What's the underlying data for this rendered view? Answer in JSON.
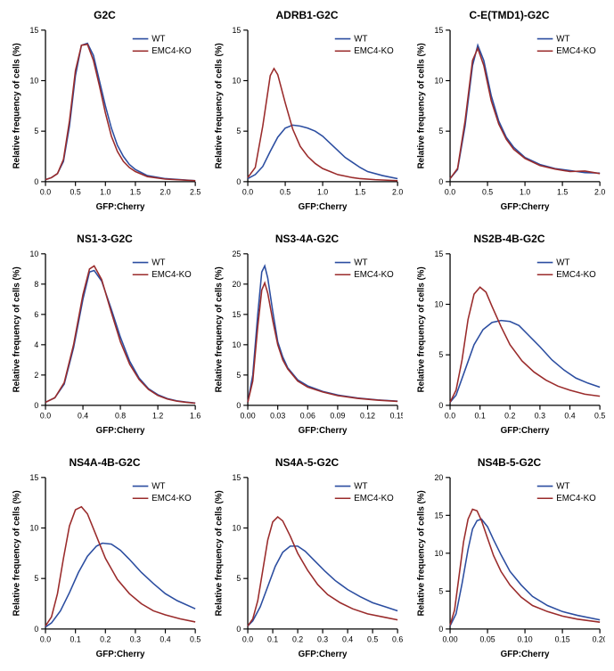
{
  "global": {
    "xlabel": "GFP:Cherry",
    "ylabel": "Relative frequency of cells (%)",
    "series_names": [
      "WT",
      "EMC4-KO"
    ],
    "colors": {
      "wt": "#2b4da0",
      "ko": "#9a2b2b"
    },
    "axis_color": "#000000",
    "background": "#ffffff",
    "line_width": 1.6,
    "title_fontsize": 12,
    "label_fontsize": 10,
    "tick_fontsize": 9,
    "legend_fontsize": 10
  },
  "panels": [
    {
      "title": "G2C",
      "xlim": [
        0.0,
        2.5
      ],
      "xtick_step": 0.5,
      "ylim": [
        0,
        15
      ],
      "ytick_step": 5,
      "legend_pos": "top-right",
      "wt": [
        [
          0,
          0.2
        ],
        [
          0.1,
          0.4
        ],
        [
          0.2,
          0.8
        ],
        [
          0.3,
          2.0
        ],
        [
          0.4,
          5.5
        ],
        [
          0.5,
          10.5
        ],
        [
          0.6,
          13.5
        ],
        [
          0.7,
          13.7
        ],
        [
          0.8,
          12.5
        ],
        [
          0.9,
          10.0
        ],
        [
          1.0,
          7.5
        ],
        [
          1.1,
          5.3
        ],
        [
          1.2,
          3.6
        ],
        [
          1.3,
          2.5
        ],
        [
          1.4,
          1.7
        ],
        [
          1.5,
          1.2
        ],
        [
          1.7,
          0.6
        ],
        [
          2.0,
          0.3
        ],
        [
          2.5,
          0.1
        ]
      ],
      "ko": [
        [
          0,
          0.2
        ],
        [
          0.1,
          0.4
        ],
        [
          0.2,
          0.8
        ],
        [
          0.3,
          2.2
        ],
        [
          0.4,
          6.0
        ],
        [
          0.5,
          11.0
        ],
        [
          0.6,
          13.5
        ],
        [
          0.7,
          13.6
        ],
        [
          0.8,
          12.0
        ],
        [
          0.9,
          9.5
        ],
        [
          1.0,
          6.8
        ],
        [
          1.1,
          4.5
        ],
        [
          1.2,
          3.0
        ],
        [
          1.3,
          2.0
        ],
        [
          1.4,
          1.4
        ],
        [
          1.5,
          1.0
        ],
        [
          1.7,
          0.5
        ],
        [
          2.0,
          0.25
        ],
        [
          2.5,
          0.1
        ]
      ]
    },
    {
      "title": "ADRB1-G2C",
      "xlim": [
        0.0,
        2.0
      ],
      "xtick_step": 0.5,
      "ylim": [
        0,
        15
      ],
      "ytick_step": 5,
      "legend_pos": "top-right",
      "wt": [
        [
          0,
          0.3
        ],
        [
          0.1,
          0.7
        ],
        [
          0.2,
          1.5
        ],
        [
          0.3,
          3.0
        ],
        [
          0.4,
          4.4
        ],
        [
          0.5,
          5.3
        ],
        [
          0.6,
          5.6
        ],
        [
          0.7,
          5.5
        ],
        [
          0.8,
          5.3
        ],
        [
          0.9,
          5.0
        ],
        [
          1.0,
          4.5
        ],
        [
          1.1,
          3.8
        ],
        [
          1.2,
          3.1
        ],
        [
          1.3,
          2.4
        ],
        [
          1.4,
          1.9
        ],
        [
          1.5,
          1.4
        ],
        [
          1.6,
          1.0
        ],
        [
          1.8,
          0.6
        ],
        [
          2.0,
          0.3
        ]
      ],
      "ko": [
        [
          0,
          0.4
        ],
        [
          0.1,
          1.4
        ],
        [
          0.2,
          5.5
        ],
        [
          0.3,
          10.5
        ],
        [
          0.35,
          11.2
        ],
        [
          0.4,
          10.6
        ],
        [
          0.5,
          7.8
        ],
        [
          0.6,
          5.2
        ],
        [
          0.7,
          3.5
        ],
        [
          0.8,
          2.5
        ],
        [
          0.9,
          1.8
        ],
        [
          1.0,
          1.3
        ],
        [
          1.1,
          1.0
        ],
        [
          1.2,
          0.7
        ],
        [
          1.3,
          0.55
        ],
        [
          1.4,
          0.4
        ],
        [
          1.5,
          0.3
        ],
        [
          1.7,
          0.2
        ],
        [
          2.0,
          0.1
        ]
      ]
    },
    {
      "title": "C-E(TMD1)-G2C",
      "xlim": [
        0.0,
        2.0
      ],
      "xtick_step": 0.5,
      "ylim": [
        0,
        15
      ],
      "ytick_step": 5,
      "legend_pos": "top-right",
      "wt": [
        [
          0,
          0.3
        ],
        [
          0.1,
          1.2
        ],
        [
          0.2,
          5.5
        ],
        [
          0.3,
          11.5
        ],
        [
          0.37,
          13.5
        ],
        [
          0.45,
          12.0
        ],
        [
          0.55,
          8.5
        ],
        [
          0.65,
          6.0
        ],
        [
          0.75,
          4.4
        ],
        [
          0.85,
          3.4
        ],
        [
          1.0,
          2.4
        ],
        [
          1.2,
          1.7
        ],
        [
          1.4,
          1.3
        ],
        [
          1.6,
          1.1
        ],
        [
          1.8,
          0.9
        ],
        [
          2.0,
          0.85
        ]
      ],
      "ko": [
        [
          0,
          0.3
        ],
        [
          0.1,
          1.3
        ],
        [
          0.2,
          6.0
        ],
        [
          0.3,
          12.0
        ],
        [
          0.37,
          13.2
        ],
        [
          0.45,
          11.5
        ],
        [
          0.55,
          8.0
        ],
        [
          0.65,
          5.7
        ],
        [
          0.75,
          4.2
        ],
        [
          0.85,
          3.2
        ],
        [
          1.0,
          2.3
        ],
        [
          1.2,
          1.6
        ],
        [
          1.4,
          1.25
        ],
        [
          1.6,
          1.0
        ],
        [
          1.8,
          1.05
        ],
        [
          2.0,
          0.8
        ]
      ]
    },
    {
      "title": "NS1-3-G2C",
      "xlim": [
        0.0,
        1.6
      ],
      "xtick_step": 0.4,
      "ylim": [
        0,
        10
      ],
      "ytick_step": 2,
      "legend_pos": "top-right",
      "wt": [
        [
          0,
          0.2
        ],
        [
          0.1,
          0.5
        ],
        [
          0.2,
          1.4
        ],
        [
          0.3,
          3.8
        ],
        [
          0.4,
          7.0
        ],
        [
          0.47,
          8.8
        ],
        [
          0.52,
          8.9
        ],
        [
          0.6,
          8.2
        ],
        [
          0.7,
          6.4
        ],
        [
          0.8,
          4.5
        ],
        [
          0.9,
          2.9
        ],
        [
          1.0,
          1.8
        ],
        [
          1.1,
          1.1
        ],
        [
          1.2,
          0.7
        ],
        [
          1.3,
          0.45
        ],
        [
          1.4,
          0.3
        ],
        [
          1.5,
          0.22
        ],
        [
          1.6,
          0.15
        ]
      ],
      "ko": [
        [
          0,
          0.2
        ],
        [
          0.1,
          0.5
        ],
        [
          0.2,
          1.5
        ],
        [
          0.3,
          4.0
        ],
        [
          0.4,
          7.3
        ],
        [
          0.47,
          9.0
        ],
        [
          0.52,
          9.2
        ],
        [
          0.6,
          8.3
        ],
        [
          0.7,
          6.2
        ],
        [
          0.8,
          4.2
        ],
        [
          0.9,
          2.7
        ],
        [
          1.0,
          1.7
        ],
        [
          1.1,
          1.05
        ],
        [
          1.2,
          0.65
        ],
        [
          1.3,
          0.42
        ],
        [
          1.4,
          0.28
        ],
        [
          1.5,
          0.2
        ],
        [
          1.6,
          0.14
        ]
      ]
    },
    {
      "title": "NS3-4A-G2C",
      "xlim": [
        0.0,
        0.15
      ],
      "xtick_step": 0.03,
      "ylim": [
        0,
        25
      ],
      "ytick_step": 5,
      "legend_pos": "top-right",
      "wt": [
        [
          0,
          0.5
        ],
        [
          0.005,
          5
        ],
        [
          0.01,
          15
        ],
        [
          0.014,
          22
        ],
        [
          0.017,
          23
        ],
        [
          0.02,
          21
        ],
        [
          0.025,
          15.5
        ],
        [
          0.03,
          10.5
        ],
        [
          0.035,
          8.0
        ],
        [
          0.04,
          6.2
        ],
        [
          0.05,
          4.2
        ],
        [
          0.06,
          3.2
        ],
        [
          0.075,
          2.3
        ],
        [
          0.09,
          1.7
        ],
        [
          0.11,
          1.2
        ],
        [
          0.13,
          0.9
        ],
        [
          0.15,
          0.7
        ]
      ],
      "ko": [
        [
          0,
          0.5
        ],
        [
          0.005,
          4
        ],
        [
          0.01,
          13
        ],
        [
          0.014,
          19
        ],
        [
          0.017,
          20.2
        ],
        [
          0.02,
          18.5
        ],
        [
          0.025,
          14
        ],
        [
          0.03,
          10
        ],
        [
          0.035,
          7.5
        ],
        [
          0.04,
          6.0
        ],
        [
          0.05,
          4.0
        ],
        [
          0.06,
          3.0
        ],
        [
          0.075,
          2.2
        ],
        [
          0.09,
          1.6
        ],
        [
          0.11,
          1.15
        ],
        [
          0.13,
          0.85
        ],
        [
          0.15,
          0.65
        ]
      ]
    },
    {
      "title": "NS2B-4B-G2C",
      "xlim": [
        0.0,
        0.5
      ],
      "xtick_step": 0.1,
      "ylim": [
        0,
        15
      ],
      "ytick_step": 5,
      "legend_pos": "top-right",
      "wt": [
        [
          0,
          0.3
        ],
        [
          0.02,
          1.0
        ],
        [
          0.05,
          3.5
        ],
        [
          0.08,
          6.0
        ],
        [
          0.11,
          7.5
        ],
        [
          0.14,
          8.2
        ],
        [
          0.17,
          8.4
        ],
        [
          0.2,
          8.3
        ],
        [
          0.23,
          7.9
        ],
        [
          0.26,
          7.0
        ],
        [
          0.3,
          5.8
        ],
        [
          0.34,
          4.5
        ],
        [
          0.38,
          3.5
        ],
        [
          0.42,
          2.7
        ],
        [
          0.46,
          2.2
        ],
        [
          0.5,
          1.8
        ]
      ],
      "ko": [
        [
          0,
          0.3
        ],
        [
          0.02,
          1.5
        ],
        [
          0.04,
          4.5
        ],
        [
          0.06,
          8.5
        ],
        [
          0.08,
          11.0
        ],
        [
          0.1,
          11.7
        ],
        [
          0.12,
          11.2
        ],
        [
          0.14,
          9.8
        ],
        [
          0.17,
          7.8
        ],
        [
          0.2,
          6.0
        ],
        [
          0.24,
          4.4
        ],
        [
          0.28,
          3.3
        ],
        [
          0.32,
          2.5
        ],
        [
          0.36,
          1.9
        ],
        [
          0.4,
          1.5
        ],
        [
          0.45,
          1.1
        ],
        [
          0.5,
          0.9
        ]
      ]
    },
    {
      "title": "NS4A-4B-G2C",
      "xlim": [
        0.0,
        0.5
      ],
      "xtick_step": 0.1,
      "ylim": [
        0,
        15
      ],
      "ytick_step": 5,
      "legend_pos": "top-right",
      "wt": [
        [
          0,
          0.2
        ],
        [
          0.02,
          0.6
        ],
        [
          0.05,
          1.8
        ],
        [
          0.08,
          3.6
        ],
        [
          0.11,
          5.6
        ],
        [
          0.14,
          7.2
        ],
        [
          0.17,
          8.2
        ],
        [
          0.19,
          8.5
        ],
        [
          0.22,
          8.4
        ],
        [
          0.25,
          7.8
        ],
        [
          0.28,
          6.9
        ],
        [
          0.32,
          5.6
        ],
        [
          0.36,
          4.5
        ],
        [
          0.4,
          3.5
        ],
        [
          0.44,
          2.8
        ],
        [
          0.5,
          2.0
        ]
      ],
      "ko": [
        [
          0,
          0.3
        ],
        [
          0.02,
          1.2
        ],
        [
          0.04,
          3.5
        ],
        [
          0.06,
          7.0
        ],
        [
          0.08,
          10.2
        ],
        [
          0.1,
          11.8
        ],
        [
          0.12,
          12.1
        ],
        [
          0.14,
          11.4
        ],
        [
          0.17,
          9.2
        ],
        [
          0.2,
          7.0
        ],
        [
          0.24,
          4.9
        ],
        [
          0.28,
          3.5
        ],
        [
          0.32,
          2.5
        ],
        [
          0.36,
          1.8
        ],
        [
          0.4,
          1.4
        ],
        [
          0.45,
          1.0
        ],
        [
          0.5,
          0.7
        ]
      ]
    },
    {
      "title": "NS4A-5-G2C",
      "xlim": [
        0.0,
        0.6
      ],
      "xtick_step": 0.1,
      "ylim": [
        0,
        15
      ],
      "ytick_step": 5,
      "legend_pos": "top-right",
      "wt": [
        [
          0,
          0.3
        ],
        [
          0.02,
          0.8
        ],
        [
          0.05,
          2.2
        ],
        [
          0.08,
          4.2
        ],
        [
          0.11,
          6.2
        ],
        [
          0.14,
          7.6
        ],
        [
          0.17,
          8.2
        ],
        [
          0.2,
          8.2
        ],
        [
          0.23,
          7.7
        ],
        [
          0.27,
          6.7
        ],
        [
          0.31,
          5.7
        ],
        [
          0.35,
          4.8
        ],
        [
          0.4,
          3.9
        ],
        [
          0.45,
          3.2
        ],
        [
          0.5,
          2.6
        ],
        [
          0.55,
          2.2
        ],
        [
          0.6,
          1.8
        ]
      ],
      "ko": [
        [
          0,
          0.3
        ],
        [
          0.02,
          1.0
        ],
        [
          0.04,
          2.8
        ],
        [
          0.06,
          5.8
        ],
        [
          0.08,
          8.8
        ],
        [
          0.1,
          10.6
        ],
        [
          0.12,
          11.1
        ],
        [
          0.14,
          10.7
        ],
        [
          0.17,
          9.2
        ],
        [
          0.2,
          7.5
        ],
        [
          0.24,
          5.8
        ],
        [
          0.28,
          4.4
        ],
        [
          0.32,
          3.4
        ],
        [
          0.37,
          2.6
        ],
        [
          0.42,
          2.0
        ],
        [
          0.48,
          1.5
        ],
        [
          0.55,
          1.15
        ],
        [
          0.6,
          0.9
        ]
      ]
    },
    {
      "title": "NS4B-5-G2C",
      "xlim": [
        0.0,
        0.2
      ],
      "xtick_step": 0.05,
      "ylim": [
        0,
        20
      ],
      "ytick_step": 5,
      "legend_pos": "top-right",
      "wt": [
        [
          0,
          0.4
        ],
        [
          0.008,
          2.0
        ],
        [
          0.016,
          6.0
        ],
        [
          0.024,
          10.5
        ],
        [
          0.03,
          13.2
        ],
        [
          0.036,
          14.3
        ],
        [
          0.042,
          14.5
        ],
        [
          0.05,
          13.5
        ],
        [
          0.058,
          11.8
        ],
        [
          0.068,
          9.8
        ],
        [
          0.08,
          7.6
        ],
        [
          0.095,
          5.8
        ],
        [
          0.11,
          4.3
        ],
        [
          0.13,
          3.1
        ],
        [
          0.15,
          2.3
        ],
        [
          0.17,
          1.8
        ],
        [
          0.2,
          1.2
        ]
      ],
      "ko": [
        [
          0,
          0.5
        ],
        [
          0.006,
          2.5
        ],
        [
          0.012,
          7.0
        ],
        [
          0.018,
          11.5
        ],
        [
          0.024,
          14.5
        ],
        [
          0.03,
          15.8
        ],
        [
          0.036,
          15.6
        ],
        [
          0.042,
          14.3
        ],
        [
          0.05,
          12.0
        ],
        [
          0.058,
          9.7
        ],
        [
          0.068,
          7.6
        ],
        [
          0.08,
          5.8
        ],
        [
          0.095,
          4.2
        ],
        [
          0.11,
          3.1
        ],
        [
          0.13,
          2.3
        ],
        [
          0.15,
          1.7
        ],
        [
          0.17,
          1.3
        ],
        [
          0.2,
          0.9
        ]
      ]
    }
  ]
}
